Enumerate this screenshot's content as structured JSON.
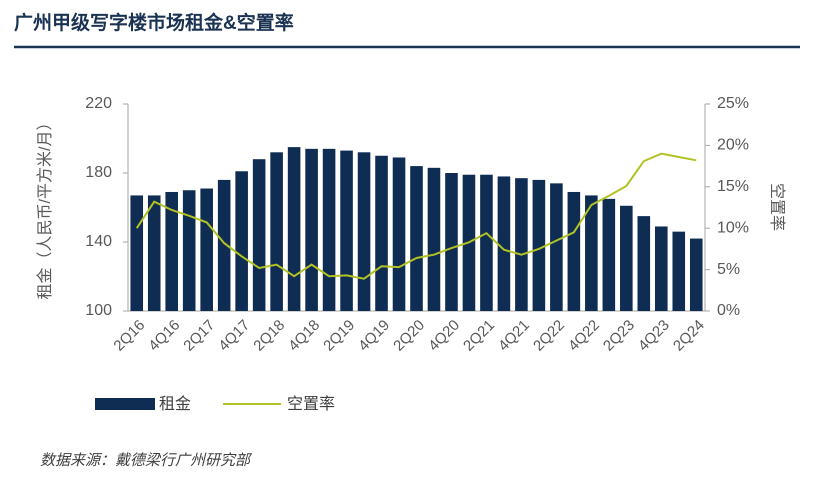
{
  "chart_data": {
    "type": "bar",
    "title": "广州甲级写字楼市场租金&空置率",
    "y_label": "租金（人民币/平方米/月）",
    "y2_label": "空置率",
    "source": "数据来源：戴德梁行广州研究部",
    "categories": [
      "2Q16",
      null,
      "4Q16",
      null,
      "2Q17",
      null,
      "4Q17",
      null,
      "2Q18",
      null,
      "4Q18",
      null,
      "2Q19",
      null,
      "4Q19",
      null,
      "2Q20",
      null,
      "4Q20",
      null,
      "2Q21",
      null,
      "4Q21",
      null,
      "2Q22",
      null,
      "4Q22",
      null,
      "2Q23",
      null,
      "4Q23",
      null,
      "2Q24"
    ],
    "series": [
      {
        "name": "租金",
        "type": "bar",
        "color": "#0f2d52",
        "values": [
          167,
          167,
          169,
          170,
          171,
          176,
          181,
          188,
          192,
          195,
          194,
          194,
          193,
          192,
          190,
          189,
          184,
          183,
          180,
          179,
          179,
          178,
          177,
          176,
          174,
          169,
          167,
          165,
          161,
          155,
          149,
          146,
          142
        ]
      },
      {
        "name": "空置率",
        "type": "line",
        "color": "#b2c224",
        "axis": "y2",
        "values": [
          10.0,
          13.2,
          12.2,
          11.5,
          10.7,
          8.2,
          6.6,
          5.2,
          5.6,
          4.2,
          5.6,
          4.2,
          4.3,
          3.9,
          5.4,
          5.3,
          6.4,
          6.8,
          7.6,
          8.3,
          9.4,
          7.4,
          6.8,
          7.5,
          8.5,
          9.5,
          12.8,
          13.9,
          15.1,
          18.1,
          19.0,
          18.6,
          18.2
        ]
      }
    ],
    "ylim": [
      100,
      220
    ],
    "yticks": [
      100,
      140,
      180,
      220
    ],
    "y2lim": [
      0,
      25
    ],
    "y2ticks": [
      {
        "value": 0,
        "label": "0%"
      },
      {
        "value": 5,
        "label": "5%"
      },
      {
        "value": 10,
        "label": "10%"
      },
      {
        "value": 15,
        "label": "15%"
      },
      {
        "value": 20,
        "label": "20%"
      },
      {
        "value": 25,
        "label": "25%"
      }
    ],
    "grid": false
  }
}
